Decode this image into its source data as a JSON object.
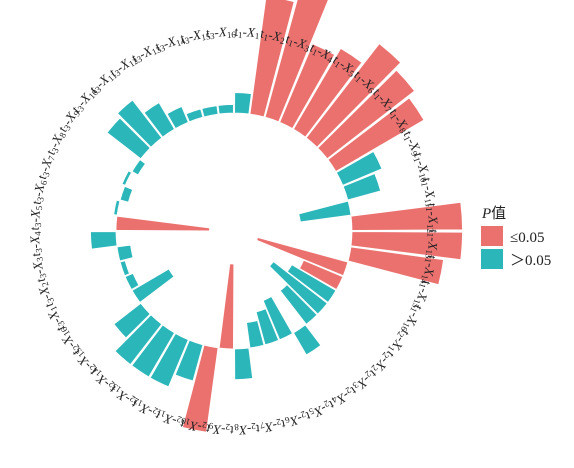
{
  "chart_data": {
    "type": "bar",
    "layout": "circular-radial",
    "baseline": 0,
    "colors": {
      "sig": "#EB716F",
      "nonsig": "#2BB6BA",
      "stroke": "#ffffff"
    },
    "legend": {
      "title_italic": "P",
      "title_rest": "值",
      "items": [
        {
          "label": "≤0.05",
          "key": "sig"
        },
        {
          "label": "＞0.05",
          "key": "nonsig"
        }
      ],
      "placement": "right"
    },
    "categories": [
      {
        "p": "t",
        "s": "1",
        "x": "1",
        "v": 0.12,
        "c": "nonsig"
      },
      {
        "p": "t",
        "s": "1",
        "x": "2",
        "v": 0.7,
        "c": "sig"
      },
      {
        "p": "t",
        "s": "1",
        "x": "3",
        "v": 0.85,
        "c": "sig"
      },
      {
        "p": "t",
        "s": "1",
        "x": "4",
        "v": 0.5,
        "c": "sig"
      },
      {
        "p": "t",
        "s": "1",
        "x": "5",
        "v": 0.55,
        "c": "sig"
      },
      {
        "p": "t",
        "s": "1",
        "x": "6",
        "v": 0.7,
        "c": "sig"
      },
      {
        "p": "t",
        "s": "1",
        "x": "7",
        "v": 0.65,
        "c": "sig"
      },
      {
        "p": "t",
        "s": "1",
        "x": "8",
        "v": 0.6,
        "c": "sig"
      },
      {
        "p": "t",
        "s": "1",
        "x": "9",
        "v": 0.25,
        "c": "nonsig"
      },
      {
        "p": "t",
        "s": "1",
        "x": "10",
        "v": 0.2,
        "c": "nonsig"
      },
      {
        "p": "t",
        "s": "1",
        "x": "11",
        "v": -0.3,
        "c": "nonsig"
      },
      {
        "p": "t",
        "s": "1",
        "x": "12",
        "v": 0.65,
        "c": "sig"
      },
      {
        "p": "t",
        "s": "1",
        "x": "13",
        "v": 0.65,
        "c": "sig"
      },
      {
        "p": "t",
        "s": "1",
        "x": "14",
        "v": 0.55,
        "c": "sig"
      },
      {
        "p": "t",
        "s": "1",
        "x": "15",
        "v": -0.55,
        "c": "sig"
      },
      {
        "p": "t",
        "s": "1",
        "x": "16",
        "v": -0.25,
        "c": "sig"
      },
      {
        "p": "t",
        "s": "2",
        "x": "1",
        "v": -0.3,
        "c": "nonsig"
      },
      {
        "p": "t",
        "s": "2",
        "x": "2",
        "v": -0.4,
        "c": "nonsig"
      },
      {
        "p": "t",
        "s": "2",
        "x": "3",
        "v": -0.25,
        "c": "nonsig"
      },
      {
        "p": "t",
        "s": "2",
        "x": "4",
        "v": 0.15,
        "c": "nonsig"
      },
      {
        "p": "t",
        "s": "2",
        "x": "5",
        "v": -0.25,
        "c": "nonsig"
      },
      {
        "p": "t",
        "s": "2",
        "x": "6",
        "v": -0.2,
        "c": "nonsig"
      },
      {
        "p": "t",
        "s": "2",
        "x": "7",
        "v": -0.15,
        "c": "nonsig"
      },
      {
        "p": "t",
        "s": "2",
        "x": "8",
        "v": 0.18,
        "c": "nonsig"
      },
      {
        "p": "t",
        "s": "2",
        "x": "9",
        "v": -0.5,
        "c": "sig"
      },
      {
        "p": "t",
        "s": "2",
        "x": "10",
        "v": 0.5,
        "c": "sig"
      },
      {
        "p": "t",
        "s": "2",
        "x": "11",
        "v": 0.22,
        "c": "nonsig"
      },
      {
        "p": "t",
        "s": "2",
        "x": "12",
        "v": 0.3,
        "c": "nonsig"
      },
      {
        "p": "t",
        "s": "2",
        "x": "13",
        "v": 0.3,
        "c": "nonsig"
      },
      {
        "p": "t",
        "s": "2",
        "x": "14",
        "v": 0.3,
        "c": "nonsig"
      },
      {
        "p": "t",
        "s": "2",
        "x": "15",
        "v": 0.2,
        "c": "nonsig"
      },
      {
        "p": "t",
        "s": "2",
        "x": "16",
        "v": -0.25,
        "c": "nonsig"
      },
      {
        "p": "t",
        "s": "3",
        "x": "1",
        "v": -0.05,
        "c": "nonsig"
      },
      {
        "p": "t",
        "s": "3",
        "x": "2",
        "v": -0.03,
        "c": "nonsig"
      },
      {
        "p": "t",
        "s": "3",
        "x": "3",
        "v": -0.08,
        "c": "nonsig"
      },
      {
        "p": "t",
        "s": "3",
        "x": "4",
        "v": 0.15,
        "c": "nonsig"
      },
      {
        "p": "t",
        "s": "3",
        "x": "5",
        "v": -0.55,
        "c": "sig"
      },
      {
        "p": "t",
        "s": "3",
        "x": "6",
        "v": 0.02,
        "c": "nonsig"
      },
      {
        "p": "t",
        "s": "3",
        "x": "7",
        "v": -0.05,
        "c": "nonsig"
      },
      {
        "p": "t",
        "s": "3",
        "x": "8",
        "v": 0.02,
        "c": "nonsig"
      },
      {
        "p": "t",
        "s": "3",
        "x": "9",
        "v": -0.04,
        "c": "nonsig"
      },
      {
        "p": "t",
        "s": "3",
        "x": "10",
        "v": 0.25,
        "c": "nonsig"
      },
      {
        "p": "t",
        "s": "3",
        "x": "11",
        "v": 0.28,
        "c": "nonsig"
      },
      {
        "p": "t",
        "s": "3",
        "x": "12",
        "v": 0.18,
        "c": "nonsig"
      },
      {
        "p": "t",
        "s": "3",
        "x": "13",
        "v": 0.1,
        "c": "nonsig"
      },
      {
        "p": "t",
        "s": "3",
        "x": "14",
        "v": 0.05,
        "c": "nonsig"
      },
      {
        "p": "t",
        "s": "3",
        "x": "15",
        "v": 0.05,
        "c": "nonsig"
      },
      {
        "p": "t",
        "s": "3",
        "x": "16",
        "v": 0.05,
        "c": "nonsig"
      }
    ]
  }
}
